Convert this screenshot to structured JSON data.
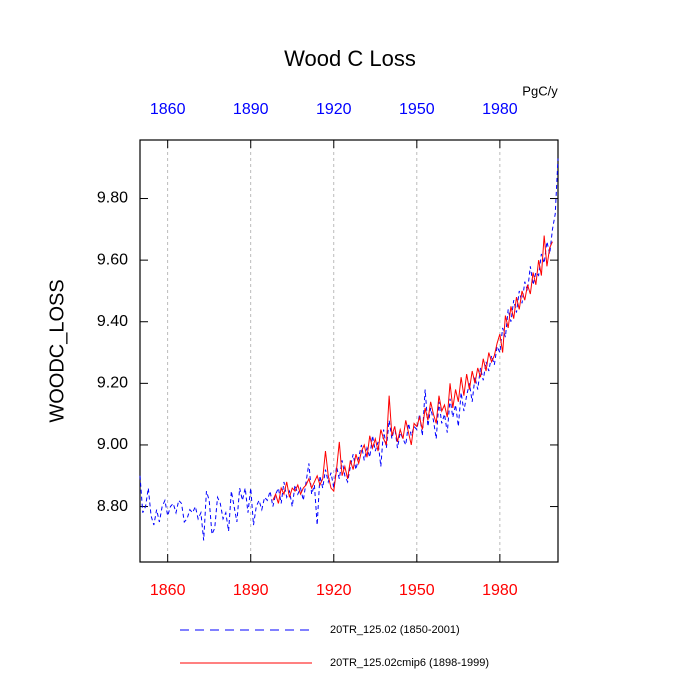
{
  "chart_data": {
    "type": "line",
    "title": "Wood C Loss",
    "y_label": "WOODC_LOSS",
    "units": "PgC/y",
    "x": [
      1850,
      1851,
      1852,
      1853,
      1854,
      1855,
      1856,
      1857,
      1858,
      1859,
      1860,
      1861,
      1862,
      1863,
      1864,
      1865,
      1866,
      1867,
      1868,
      1869,
      1870,
      1871,
      1872,
      1873,
      1874,
      1875,
      1876,
      1877,
      1878,
      1879,
      1880,
      1881,
      1882,
      1883,
      1884,
      1885,
      1886,
      1887,
      1888,
      1889,
      1890,
      1891,
      1892,
      1893,
      1894,
      1895,
      1896,
      1897,
      1898,
      1899,
      1900,
      1901,
      1902,
      1903,
      1904,
      1905,
      1906,
      1907,
      1908,
      1909,
      1910,
      1911,
      1912,
      1913,
      1914,
      1915,
      1916,
      1917,
      1918,
      1919,
      1920,
      1921,
      1922,
      1923,
      1924,
      1925,
      1926,
      1927,
      1928,
      1929,
      1930,
      1931,
      1932,
      1933,
      1934,
      1935,
      1936,
      1937,
      1938,
      1939,
      1940,
      1941,
      1942,
      1943,
      1944,
      1945,
      1946,
      1947,
      1948,
      1949,
      1950,
      1951,
      1952,
      1953,
      1954,
      1955,
      1956,
      1957,
      1958,
      1959,
      1960,
      1961,
      1962,
      1963,
      1964,
      1965,
      1966,
      1967,
      1968,
      1969,
      1970,
      1971,
      1972,
      1973,
      1974,
      1975,
      1976,
      1977,
      1978,
      1979,
      1980,
      1981,
      1982,
      1983,
      1984,
      1985,
      1986,
      1987,
      1988,
      1989,
      1990,
      1991,
      1992,
      1993,
      1994,
      1995,
      1996,
      1997,
      1998,
      1999,
      2000,
      2001
    ],
    "series": [
      {
        "name": "20TR_125.02 (1850-2001)",
        "color": "#0000ff",
        "dashed": true,
        "values": [
          8.9,
          8.78,
          8.8,
          8.86,
          8.77,
          8.74,
          8.79,
          8.75,
          8.8,
          8.82,
          8.77,
          8.8,
          8.81,
          8.78,
          8.82,
          8.81,
          8.75,
          8.76,
          8.79,
          8.78,
          8.8,
          8.76,
          8.78,
          8.69,
          8.85,
          8.82,
          8.71,
          8.73,
          8.83,
          8.81,
          8.76,
          8.78,
          8.72,
          8.85,
          8.8,
          8.75,
          8.86,
          8.82,
          8.86,
          8.78,
          8.86,
          8.74,
          8.8,
          8.82,
          8.79,
          8.83,
          8.82,
          8.85,
          8.8,
          8.84,
          8.86,
          8.81,
          8.88,
          8.83,
          8.85,
          8.8,
          8.87,
          8.84,
          8.86,
          8.82,
          8.88,
          8.94,
          8.84,
          8.87,
          8.74,
          8.9,
          8.86,
          8.92,
          8.88,
          8.91,
          8.86,
          8.93,
          8.89,
          8.95,
          8.9,
          8.88,
          8.93,
          8.97,
          8.92,
          8.96,
          9.0,
          8.95,
          8.99,
          8.96,
          9.03,
          8.98,
          9.01,
          8.93,
          9.05,
          8.99,
          9.08,
          9.02,
          9.06,
          8.99,
          9.04,
          9.02,
          9.0,
          9.07,
          9.03,
          9.06,
          9.05,
          9.1,
          9.03,
          9.18,
          9.06,
          9.12,
          9.08,
          9.02,
          9.14,
          9.07,
          9.1,
          9.04,
          9.15,
          9.09,
          9.13,
          9.06,
          9.17,
          9.11,
          9.16,
          9.2,
          9.14,
          9.22,
          9.18,
          9.25,
          9.21,
          9.27,
          9.24,
          9.29,
          9.26,
          9.32,
          9.3,
          9.38,
          9.35,
          9.44,
          9.4,
          9.47,
          9.43,
          9.5,
          9.46,
          9.53,
          9.5,
          9.58,
          9.52,
          9.56,
          9.55,
          9.62,
          9.59,
          9.66,
          9.62,
          9.7,
          9.75,
          9.93
        ]
      },
      {
        "name": "20TR_125.02cmip6 (1898-1999)",
        "color": "#ff0000",
        "dashed": false,
        "values": [
          null,
          null,
          null,
          null,
          null,
          null,
          null,
          null,
          null,
          null,
          null,
          null,
          null,
          null,
          null,
          null,
          null,
          null,
          null,
          null,
          null,
          null,
          null,
          null,
          null,
          null,
          null,
          null,
          null,
          null,
          null,
          null,
          null,
          null,
          null,
          null,
          null,
          null,
          null,
          null,
          null,
          null,
          null,
          null,
          null,
          null,
          null,
          null,
          8.82,
          8.84,
          8.81,
          8.86,
          8.84,
          8.88,
          8.83,
          8.86,
          8.85,
          8.87,
          8.84,
          8.86,
          8.87,
          8.89,
          8.86,
          8.88,
          8.9,
          8.87,
          8.89,
          8.98,
          8.9,
          8.86,
          8.85,
          8.92,
          9.01,
          8.9,
          8.93,
          8.89,
          8.95,
          8.92,
          8.97,
          8.94,
          8.98,
          9.0,
          8.96,
          9.03,
          8.99,
          9.02,
          8.98,
          9.05,
          9.02,
          9.0,
          9.16,
          9.03,
          9.06,
          9.01,
          9.05,
          9.02,
          9.08,
          9.04,
          9.0,
          9.07,
          9.06,
          9.09,
          9.05,
          9.12,
          9.08,
          9.14,
          9.1,
          9.07,
          9.16,
          9.11,
          9.13,
          9.09,
          9.2,
          9.12,
          9.18,
          9.14,
          9.22,
          9.16,
          9.23,
          9.18,
          9.24,
          9.2,
          9.25,
          9.22,
          9.28,
          9.24,
          9.3,
          9.27,
          9.29,
          9.33,
          9.36,
          9.3,
          9.42,
          9.38,
          9.45,
          9.41,
          9.48,
          9.44,
          9.5,
          9.47,
          9.52,
          9.49,
          9.56,
          9.52,
          9.6,
          9.55,
          9.68,
          9.58,
          9.64,
          9.66,
          null,
          null
        ]
      }
    ],
    "xlim": [
      1850,
      2001
    ],
    "xticks": [
      1860,
      1890,
      1920,
      1950,
      1980
    ],
    "ylim": [
      8.62,
      9.99
    ],
    "yticks": [
      {
        "value": 8.8,
        "label": "8.80"
      },
      {
        "value": 9.0,
        "label": "9.00"
      },
      {
        "value": 9.2,
        "label": "9.20"
      },
      {
        "value": 9.4,
        "label": "9.40"
      },
      {
        "value": 9.6,
        "label": "9.60"
      },
      {
        "value": 9.8,
        "label": "9.80"
      }
    ],
    "x_grid": true,
    "top_tick_color": "#0000ff",
    "bottom_tick_color": "#ff0000",
    "legend": "bottom"
  }
}
